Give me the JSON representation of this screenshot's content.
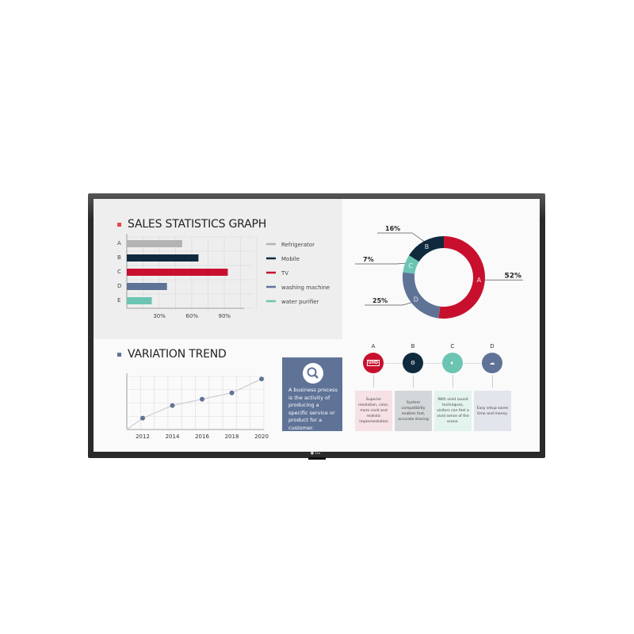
{
  "sales": {
    "title": "SALES STATISTICS GRAPH",
    "title_marker_color": "#e8464a"
  },
  "trend": {
    "title": "VARIATION TREND",
    "title_marker_color": "#5f7397"
  },
  "chart_data": [
    {
      "type": "bar",
      "orientation": "horizontal",
      "categories": [
        "A",
        "B",
        "C",
        "D",
        "E"
      ],
      "values": [
        51,
        66,
        93,
        37,
        23
      ],
      "colors": [
        "#b3b3b3",
        "#0f2a3d",
        "#c8102e",
        "#5f7397",
        "#6cc4b3"
      ],
      "xticks": [
        "30%",
        "60%",
        "90%"
      ],
      "xlim": [
        0,
        110
      ],
      "grid": true,
      "legend": [
        "Refrigerator",
        "Mobile",
        "TV",
        "washing machine",
        "water purifier"
      ],
      "legend_position": "right"
    },
    {
      "type": "line",
      "x": [
        "2012",
        "2014",
        "2016",
        "2018",
        "2020"
      ],
      "values": [
        0.9,
        1.9,
        2.4,
        2.9,
        4
      ],
      "ylim": [
        0,
        4.2
      ],
      "grid": true,
      "line_color": "#cfcfcf",
      "marker_color": "#5f7397"
    },
    {
      "type": "pie",
      "donut": true,
      "slices": [
        {
          "label": "A",
          "value": 52,
          "display": "52%",
          "color": "#c8102e"
        },
        {
          "label": "D",
          "value": 25,
          "display": "25%",
          "color": "#5f7397"
        },
        {
          "label": "C",
          "value": 7,
          "display": "7%",
          "color": "#6cc4b3"
        },
        {
          "label": "B",
          "value": 16,
          "display": "16%",
          "color": "#0f2a3d"
        }
      ]
    }
  ],
  "info_card": {
    "icon": "magnifier-icon",
    "text": "A business process is the activity of producing a specific service or product for a customer."
  },
  "features": [
    {
      "letter": "A",
      "icon": "UHD",
      "color": "#c8102e",
      "bg": "#f6e1e6",
      "text": "Superior resolution, color, more vivid and realistic implementation"
    },
    {
      "letter": "B",
      "icon": "gear-icon",
      "color": "#0f2a3d",
      "bg": "#d3d7d9",
      "text": "System compatibility enables fast, accurate sharing"
    },
    {
      "letter": "C",
      "icon": "speaker-icon",
      "color": "#6cc4b3",
      "bg": "#e3f3ee",
      "text": "With vivid sound techniques, visitors can feel a vivid sense of the scene."
    },
    {
      "letter": "D",
      "icon": "cloud-network-icon",
      "color": "#5f7397",
      "bg": "#e3e5ec",
      "text": "Easy setup saves time and money."
    }
  ],
  "brand": "LG"
}
